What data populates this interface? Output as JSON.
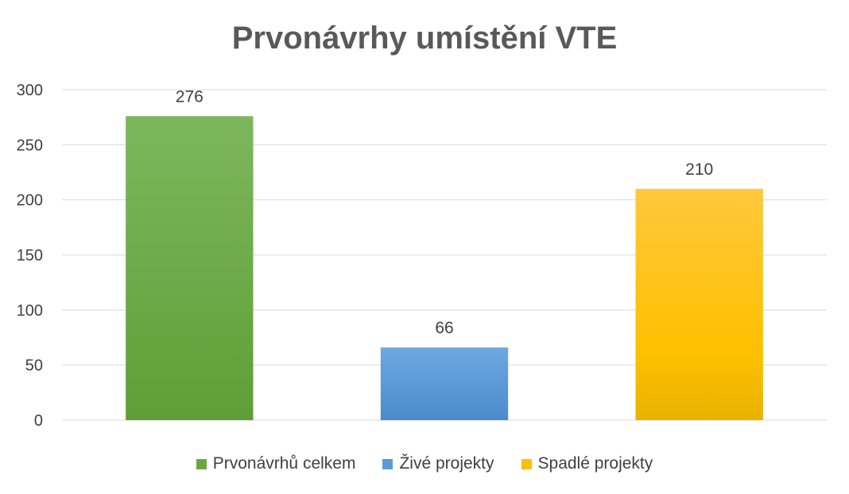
{
  "chart_data": {
    "type": "bar",
    "title": "Prvonávrhy umístění VTE",
    "categories": [
      "Prvonávrhů celkem",
      "Živé projekty",
      "Spadlé projekty"
    ],
    "values": [
      276,
      66,
      210
    ],
    "colors": [
      "#6aa842",
      "#5b9bd5",
      "#ffc000"
    ],
    "ylim": [
      0,
      300
    ],
    "yticks": [
      0,
      50,
      100,
      150,
      200,
      250,
      300
    ],
    "grid": true,
    "legend_position": "bottom",
    "data_labels": true
  }
}
